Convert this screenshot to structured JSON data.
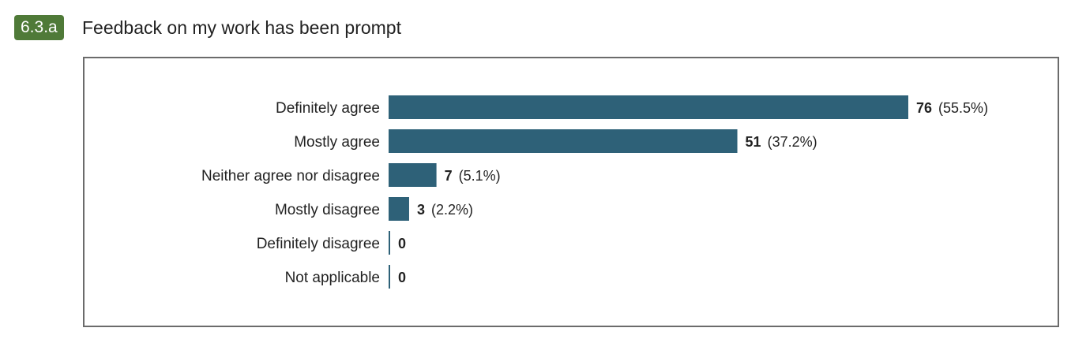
{
  "question": {
    "number": "6.3.a",
    "title": "Feedback on my work has been prompt"
  },
  "colors": {
    "bar": "#2e6178",
    "badge": "#4f7a38",
    "frame": "#6b6b6b"
  },
  "chart_data": {
    "type": "bar",
    "orientation": "horizontal",
    "categories": [
      "Definitely agree",
      "Mostly agree",
      "Neither agree nor disagree",
      "Mostly disagree",
      "Definitely disagree",
      "Not applicable"
    ],
    "values": [
      76,
      51,
      7,
      3,
      0,
      0
    ],
    "value_labels": [
      "76",
      "51",
      "7",
      "3",
      "0",
      "0"
    ],
    "percent_labels": [
      "(55.5%)",
      "(37.2%)",
      "(5.1%)",
      "(2.2%)",
      "",
      ""
    ],
    "xlim": [
      0,
      76
    ],
    "grid": false,
    "legend": "none"
  }
}
